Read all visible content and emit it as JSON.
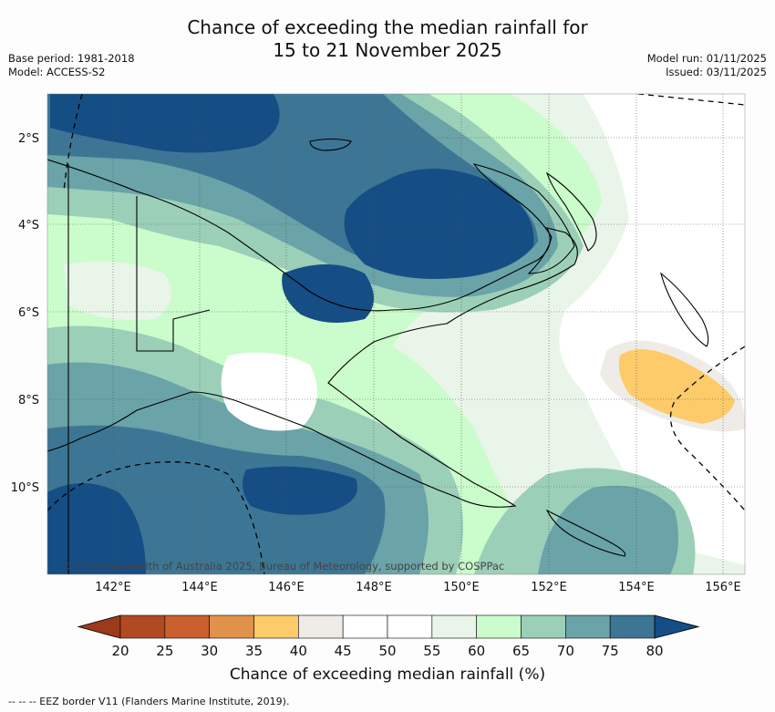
{
  "title": {
    "line1": "Chance of exceeding the median rainfall for",
    "line2": "15 to 21 November 2025"
  },
  "meta": {
    "base_period": "Base period: 1981-2018",
    "model": "Model: ACCESS-S2",
    "model_run": "Model run: 01/11/2025",
    "issued": "Issued: 03/11/2025"
  },
  "map": {
    "lon_labels": [
      "142°E",
      "144°E",
      "146°E",
      "148°E",
      "150°E",
      "152°E",
      "154°E",
      "156°E"
    ],
    "lat_labels": [
      "2°S",
      "4°S",
      "6°S",
      "8°S",
      "10°S"
    ],
    "copyright": "© Commonwealth of Australia 2025, Bureau of Meteorology, supported by COSPPac"
  },
  "colorbar": {
    "ticks": [
      "20",
      "25",
      "30",
      "35",
      "40",
      "45",
      "50",
      "55",
      "60",
      "65",
      "70",
      "75",
      "80"
    ],
    "colors": [
      "#b14a22",
      "#c9602e",
      "#e0914a",
      "#fdcb6a",
      "#efece8",
      "#ffffff",
      "#ffffff",
      "#e8f5e8",
      "#cbfccb",
      "#9ccfb8",
      "#6aa3a8",
      "#3d7694"
    ],
    "under_color": "#9c3a1c",
    "over_color": "#154d85",
    "label": "Chance of exceeding median rainfall (%)"
  },
  "footnote": "--  --  -- EEZ border V11 (Flanders Marine Institute, 2019)."
}
